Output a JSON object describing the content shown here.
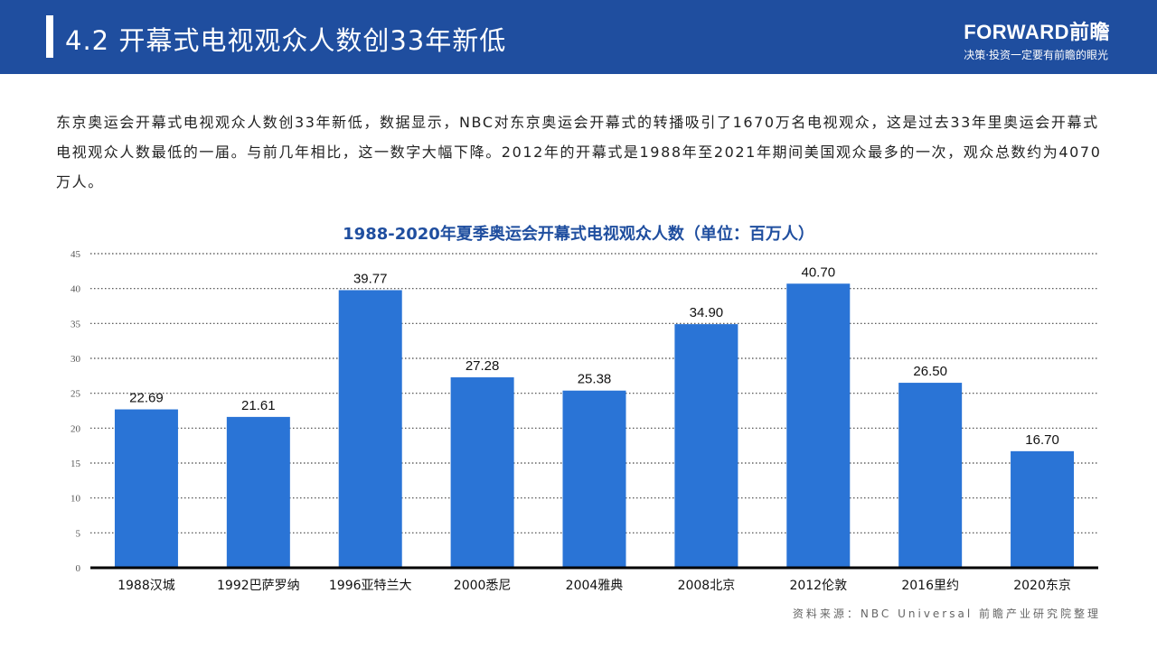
{
  "header": {
    "title": "4.2 开幕式电视观众人数创33年新低",
    "logo_brand": "FORWARD前瞻",
    "logo_slogan": "决策·投资一定要有前瞻的眼光"
  },
  "body_text": "东京奥运会开幕式电视观众人数创33年新低，数据显示，NBC对东京奥运会开幕式的转播吸引了1670万名电视观众，这是过去33年里奥运会开幕式电视观众人数最低的一届。与前几年相比，这一数字大幅下降。2012年的开幕式是1988年至2021年期间美国观众最多的一次，观众总数约为4070万人。",
  "chart_data": {
    "type": "bar",
    "title": "1988-2020年夏季奥运会开幕式电视观众人数（单位：百万人）",
    "categories": [
      "1988汉城",
      "1992巴萨罗纳",
      "1996亚特兰大",
      "2000悉尼",
      "2004雅典",
      "2008北京",
      "2012伦敦",
      "2016里约",
      "2020东京"
    ],
    "values": [
      22.69,
      21.61,
      39.77,
      27.28,
      25.38,
      34.9,
      40.7,
      26.5,
      16.7
    ],
    "labels": [
      "22.69",
      "21.61",
      "39.77",
      "27.28",
      "25.38",
      "34.90",
      "40.70",
      "26.50",
      "16.70"
    ],
    "yticks": [
      "0",
      "5",
      "10",
      "15",
      "20",
      "25",
      "30",
      "35",
      "40",
      "45"
    ],
    "ylim": [
      0,
      45
    ],
    "grid": "dotted horizontal",
    "bar_color": "#2a74d6"
  },
  "source": "资料来源：NBC Universal 前瞻产业研究院整理"
}
